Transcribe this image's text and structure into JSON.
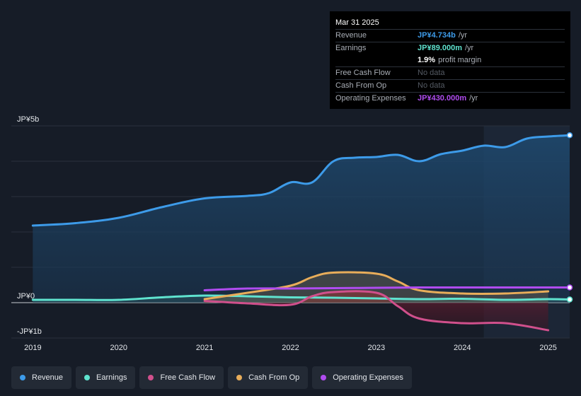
{
  "tooltip": {
    "date": "Mar 31 2025",
    "rows": [
      {
        "label": "Revenue",
        "value": "JP¥4.734b",
        "unit": "/yr",
        "color": "#3d9be9"
      },
      {
        "label": "Earnings",
        "value": "JP¥89.000m",
        "unit": "/yr",
        "color": "#5fe3cf"
      },
      {
        "label": "",
        "value": "1.9%",
        "unit": "profit margin",
        "color": "#ffffff"
      },
      {
        "label": "Free Cash Flow",
        "value": "No data",
        "unit": "",
        "color": "#555b64"
      },
      {
        "label": "Cash From Op",
        "value": "No data",
        "unit": "",
        "color": "#555b64"
      },
      {
        "label": "Operating Expenses",
        "value": "JP¥430.000m",
        "unit": "/yr",
        "color": "#b04cf0"
      }
    ]
  },
  "legend": [
    {
      "label": "Revenue",
      "color": "#3d9be9"
    },
    {
      "label": "Earnings",
      "color": "#5fe3cf"
    },
    {
      "label": "Free Cash Flow",
      "color": "#d0508c"
    },
    {
      "label": "Cash From Op",
      "color": "#e8ad5a"
    },
    {
      "label": "Operating Expenses",
      "color": "#b04cf0"
    }
  ],
  "chart_data": {
    "type": "line",
    "title": "",
    "xlabel": "",
    "ylabel": "",
    "y_tick_labels": [
      {
        "value": 5,
        "label": "JP¥5b"
      },
      {
        "value": 0,
        "label": "JP¥0"
      },
      {
        "value": -1,
        "label": "-JP¥1b"
      }
    ],
    "x_tick_labels": [
      "2019",
      "2020",
      "2021",
      "2022",
      "2023",
      "2024",
      "2025"
    ],
    "xlim": [
      2018.75,
      2025.25
    ],
    "ylim": [
      -1,
      5
    ],
    "forecast_region_start": 2024.25,
    "series": [
      {
        "name": "Revenue",
        "color": "#3d9be9",
        "area": true,
        "x": [
          2019.0,
          2019.5,
          2020.0,
          2020.5,
          2021.0,
          2021.5,
          2021.75,
          2022.0,
          2022.25,
          2022.5,
          2022.75,
          2023.0,
          2023.25,
          2023.5,
          2023.75,
          2024.0,
          2024.25,
          2024.5,
          2024.75,
          2025.0,
          2025.25
        ],
        "y": [
          2.18,
          2.25,
          2.4,
          2.7,
          2.95,
          3.02,
          3.1,
          3.4,
          3.4,
          4.0,
          4.1,
          4.12,
          4.18,
          4.0,
          4.2,
          4.3,
          4.44,
          4.4,
          4.64,
          4.7,
          4.734
        ]
      },
      {
        "name": "Earnings",
        "color": "#5fe3cf",
        "area": true,
        "x": [
          2019.0,
          2019.5,
          2020.0,
          2020.5,
          2021.0,
          2021.5,
          2022.0,
          2022.5,
          2023.0,
          2023.5,
          2024.0,
          2024.5,
          2025.0,
          2025.25
        ],
        "y": [
          0.08,
          0.08,
          0.08,
          0.15,
          0.2,
          0.18,
          0.15,
          0.14,
          0.12,
          0.1,
          0.11,
          0.08,
          0.1,
          0.089
        ]
      },
      {
        "name": "Free Cash Flow",
        "color": "#d0508c",
        "area": true,
        "x": [
          2021.0,
          2021.5,
          2022.0,
          2022.25,
          2022.5,
          2023.0,
          2023.25,
          2023.5,
          2024.0,
          2024.5,
          2025.0
        ],
        "y": [
          0.05,
          -0.02,
          -0.06,
          0.18,
          0.3,
          0.28,
          -0.1,
          -0.45,
          -0.58,
          -0.58,
          -0.78
        ]
      },
      {
        "name": "Cash From Op",
        "color": "#e8ad5a",
        "area": true,
        "x": [
          2021.0,
          2021.5,
          2022.0,
          2022.25,
          2022.5,
          2023.0,
          2023.25,
          2023.5,
          2024.0,
          2024.5,
          2025.0
        ],
        "y": [
          0.1,
          0.28,
          0.48,
          0.72,
          0.85,
          0.82,
          0.6,
          0.35,
          0.26,
          0.26,
          0.32
        ]
      },
      {
        "name": "Operating Expenses",
        "color": "#b04cf0",
        "area": false,
        "x": [
          2021.0,
          2021.5,
          2022.0,
          2022.5,
          2023.0,
          2023.5,
          2024.0,
          2024.5,
          2025.0,
          2025.25
        ],
        "y": [
          0.35,
          0.4,
          0.4,
          0.41,
          0.42,
          0.43,
          0.43,
          0.43,
          0.43,
          0.43
        ]
      }
    ]
  }
}
